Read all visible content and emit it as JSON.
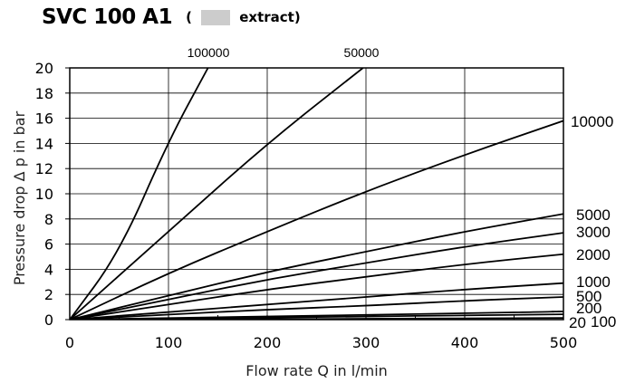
{
  "header": {
    "title": "SVC 100 A1",
    "paren_open": "(",
    "legend_text": "extract)",
    "legend_color": "#cccccc"
  },
  "chart_data": {
    "type": "line",
    "title": "SVC 100 A1",
    "xlabel": "Flow rate Q in l/min",
    "ylabel": "Pressure drop Δ p in bar",
    "xlim": [
      0,
      500
    ],
    "ylim": [
      0,
      20
    ],
    "x_ticks": [
      "0",
      "100",
      "200",
      "300",
      "400",
      "500"
    ],
    "y_ticks": [
      "0",
      "2",
      "4",
      "6",
      "8",
      "10",
      "12",
      "14",
      "16",
      "18",
      "20"
    ],
    "grid": true,
    "line_color": "#000000",
    "series": [
      {
        "name": "100000",
        "points": [
          [
            0,
            0
          ],
          [
            50,
            5.3
          ],
          [
            100,
            14.2
          ],
          [
            140,
            20
          ]
        ]
      },
      {
        "name": "50000",
        "points": [
          [
            0,
            0
          ],
          [
            100,
            7.0
          ],
          [
            200,
            14.0
          ],
          [
            297,
            20
          ]
        ]
      },
      {
        "name": "10000",
        "points": [
          [
            0,
            0
          ],
          [
            100,
            3.7
          ],
          [
            200,
            7.0
          ],
          [
            300,
            10.2
          ],
          [
            400,
            13.1
          ],
          [
            500,
            15.8
          ]
        ]
      },
      {
        "name": "5000",
        "points": [
          [
            0,
            0
          ],
          [
            100,
            1.9
          ],
          [
            200,
            3.8
          ],
          [
            300,
            5.4
          ],
          [
            400,
            7.0
          ],
          [
            500,
            8.4
          ]
        ]
      },
      {
        "name": "3000",
        "points": [
          [
            0,
            0
          ],
          [
            100,
            1.6
          ],
          [
            200,
            3.2
          ],
          [
            300,
            4.5
          ],
          [
            400,
            5.8
          ],
          [
            500,
            6.9
          ]
        ]
      },
      {
        "name": "2000",
        "points": [
          [
            0,
            0
          ],
          [
            100,
            1.2
          ],
          [
            200,
            2.4
          ],
          [
            300,
            3.4
          ],
          [
            400,
            4.4
          ],
          [
            500,
            5.2
          ]
        ]
      },
      {
        "name": "1000",
        "points": [
          [
            0,
            0
          ],
          [
            100,
            0.6
          ],
          [
            200,
            1.2
          ],
          [
            300,
            1.8
          ],
          [
            400,
            2.4
          ],
          [
            500,
            2.9
          ]
        ]
      },
      {
        "name": "500",
        "points": [
          [
            0,
            0
          ],
          [
            100,
            0.4
          ],
          [
            200,
            0.8
          ],
          [
            300,
            1.1
          ],
          [
            400,
            1.5
          ],
          [
            500,
            1.8
          ]
        ]
      },
      {
        "name": "200",
        "points": [
          [
            0,
            0
          ],
          [
            100,
            0.12
          ],
          [
            200,
            0.25
          ],
          [
            300,
            0.38
          ],
          [
            400,
            0.5
          ],
          [
            500,
            0.65
          ]
        ]
      },
      {
        "name": "100",
        "points": [
          [
            0,
            0
          ],
          [
            100,
            0.08
          ],
          [
            200,
            0.16
          ],
          [
            300,
            0.25
          ],
          [
            400,
            0.34
          ],
          [
            500,
            0.42
          ]
        ]
      },
      {
        "name": "20",
        "points": [
          [
            0,
            0
          ],
          [
            100,
            0.02
          ],
          [
            200,
            0.04
          ],
          [
            300,
            0.07
          ],
          [
            400,
            0.1
          ],
          [
            500,
            0.13
          ]
        ]
      }
    ]
  }
}
